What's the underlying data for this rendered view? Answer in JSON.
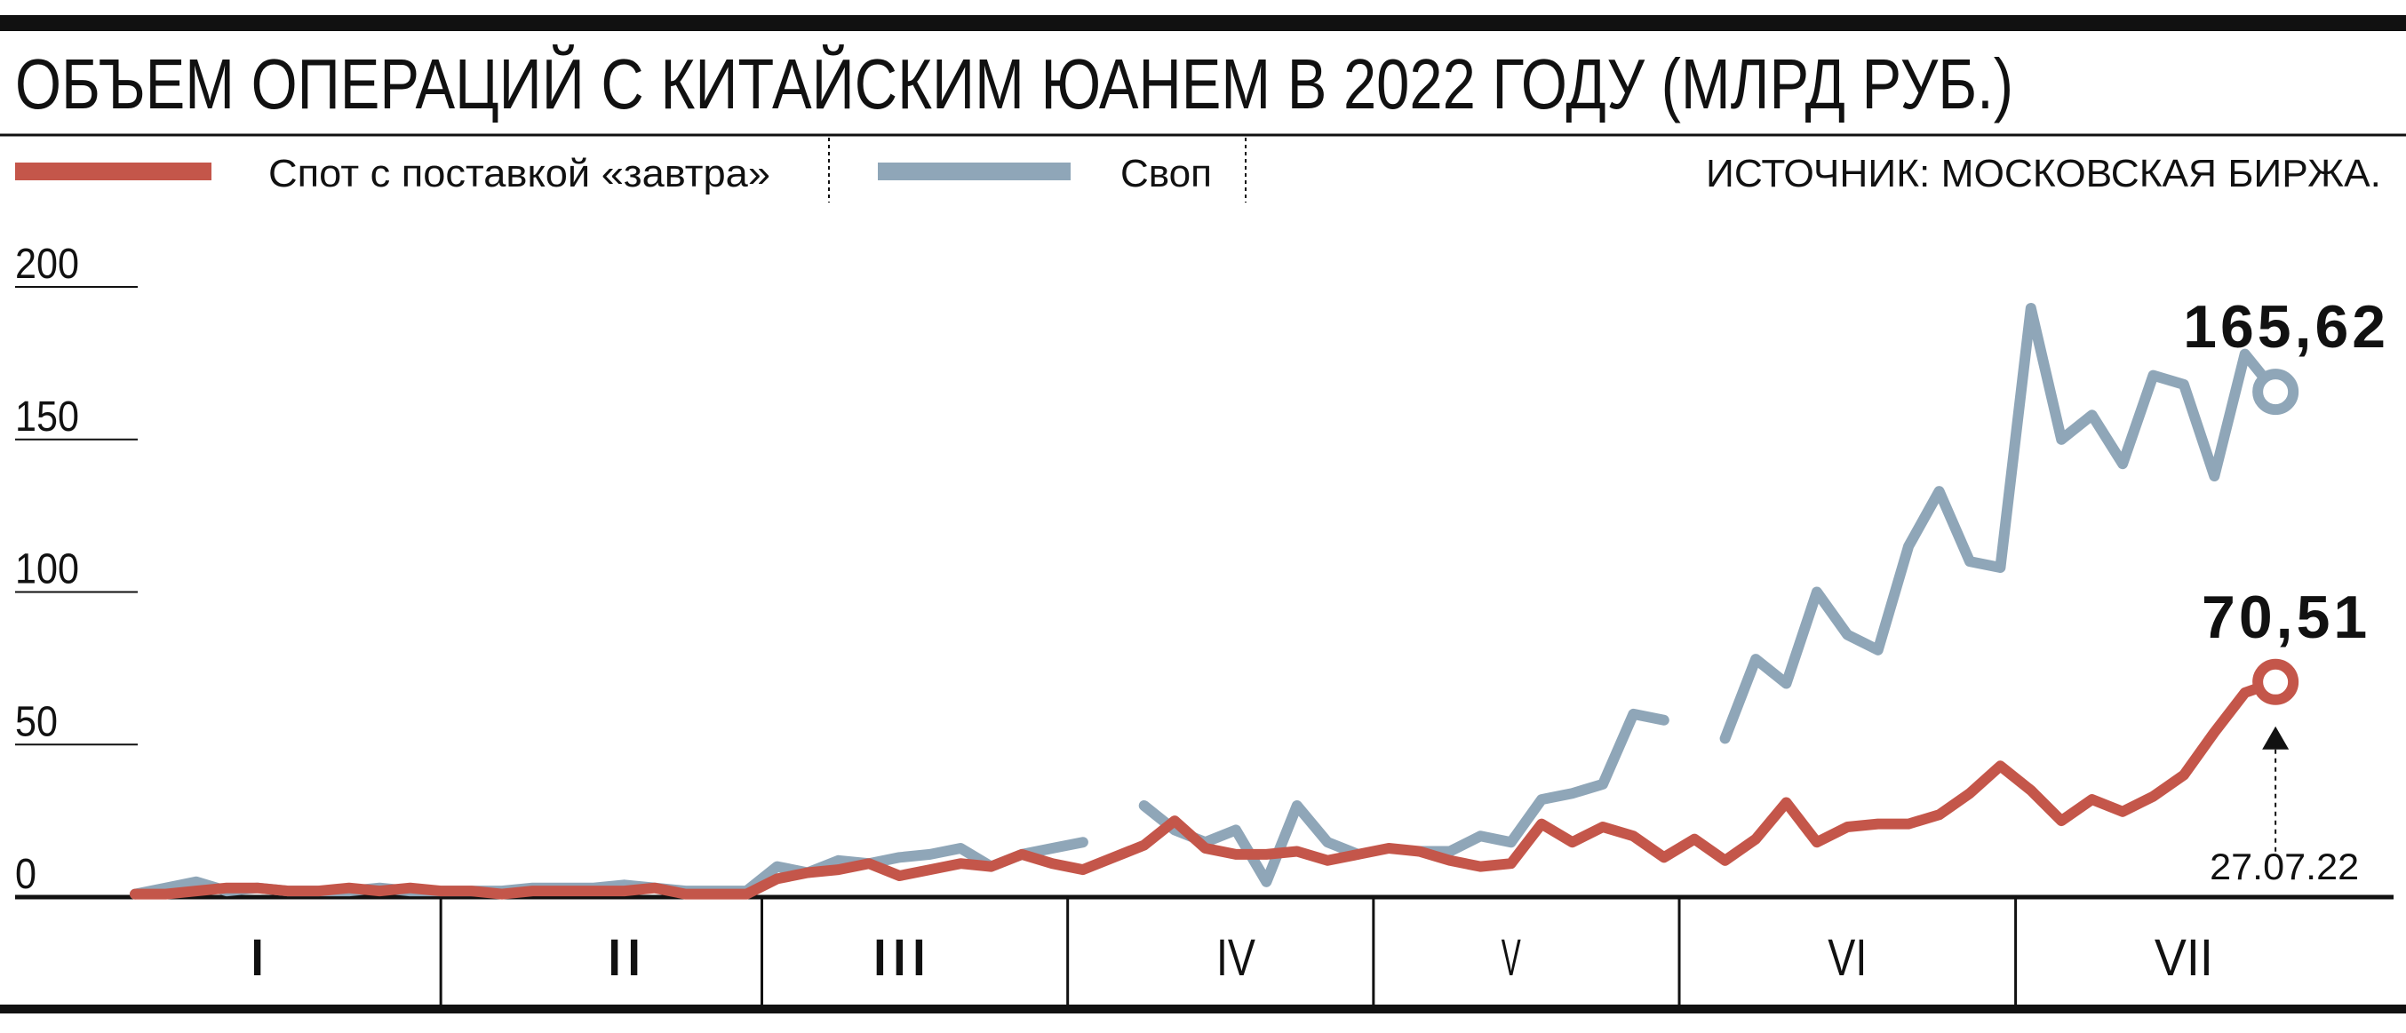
{
  "chart_data": {
    "type": "line",
    "title": "ОБЪЕМ ОПЕРАЦИЙ С КИТАЙСКИМ ЮАНЕМ В 2022 ГОДУ (МЛРД РУБ.)",
    "source": "ИСТОЧНИК: МОСКОВСКАЯ БИРЖА.",
    "annotation": "27.07.22",
    "categories": [
      null,
      null,
      null,
      null,
      "I",
      null,
      null,
      null,
      null,
      null,
      null,
      null,
      null,
      null,
      null,
      null,
      "II",
      null,
      null,
      null,
      null,
      null,
      null,
      null,
      null,
      "III",
      null,
      null,
      null,
      null,
      null,
      null,
      null,
      null,
      null,
      null,
      "IV",
      null,
      null,
      null,
      null,
      null,
      null,
      null,
      null,
      "V",
      null,
      null,
      null,
      null,
      null,
      null,
      null,
      null,
      null,
      null,
      "VI",
      null,
      null,
      null,
      null,
      null,
      null,
      null,
      null,
      null,
      null,
      "VII",
      null,
      null,
      null
    ],
    "series": [
      {
        "name": "Спот с поставкой «завтра»",
        "color": "#c4564a",
        "values": [
          1,
          1,
          2,
          3,
          3,
          2,
          2,
          3,
          2,
          3,
          2,
          2,
          1,
          2,
          2,
          2,
          2,
          3,
          1,
          1,
          1,
          6,
          8,
          9,
          11,
          7,
          9,
          11,
          10,
          14,
          11,
          9,
          13,
          17,
          25,
          16,
          14,
          14,
          15,
          12,
          14,
          16,
          15,
          12,
          10,
          11,
          24,
          18,
          23,
          20,
          13,
          19,
          12,
          19,
          31,
          18,
          23,
          24,
          24,
          27,
          34,
          43,
          35,
          25,
          32,
          28,
          33,
          40,
          54,
          67,
          70.51
        ],
        "value_labels": [
          null,
          null,
          null,
          null,
          null,
          null,
          null,
          null,
          null,
          null,
          null,
          null,
          null,
          null,
          null,
          null,
          null,
          null,
          null,
          null,
          null,
          null,
          null,
          null,
          null,
          null,
          null,
          null,
          null,
          null,
          null,
          null,
          null,
          null,
          null,
          null,
          null,
          null,
          null,
          null,
          null,
          null,
          null,
          null,
          null,
          null,
          null,
          null,
          null,
          null,
          null,
          null,
          null,
          null,
          null,
          null,
          null,
          null,
          null,
          null,
          null,
          null,
          null,
          null,
          null,
          null,
          null,
          null,
          null,
          null,
          "70,51"
        ]
      },
      {
        "name": "Своп",
        "color": "#8fa6b8",
        "values": [
          1,
          3,
          5,
          2,
          3,
          2,
          2,
          2,
          3,
          2,
          2,
          2,
          2,
          3,
          3,
          3,
          4,
          3,
          2,
          2,
          2,
          10,
          8,
          12,
          11,
          13,
          14,
          16,
          10,
          14,
          16,
          18,
          null,
          30,
          22,
          18,
          22,
          5,
          30,
          18,
          14,
          null,
          15,
          15,
          20,
          18,
          32,
          34,
          37,
          60,
          58,
          null,
          52,
          78,
          70,
          100,
          86,
          81,
          115,
          133,
          110,
          108,
          193,
          150,
          158,
          142,
          171,
          168,
          138,
          178,
          165.62
        ],
        "value_labels": [
          null,
          null,
          null,
          null,
          null,
          null,
          null,
          null,
          null,
          null,
          null,
          null,
          null,
          null,
          null,
          null,
          null,
          null,
          null,
          null,
          null,
          null,
          null,
          null,
          null,
          null,
          null,
          null,
          null,
          null,
          null,
          null,
          null,
          null,
          null,
          null,
          null,
          null,
          null,
          null,
          null,
          null,
          null,
          null,
          null,
          null,
          null,
          null,
          null,
          null,
          null,
          null,
          null,
          null,
          null,
          null,
          null,
          null,
          null,
          null,
          null,
          null,
          null,
          null,
          null,
          null,
          null,
          null,
          null,
          null,
          "165,62"
        ]
      }
    ],
    "ylim": [
      0,
      200
    ],
    "yticks": [
      0,
      50,
      100,
      150,
      200
    ]
  }
}
